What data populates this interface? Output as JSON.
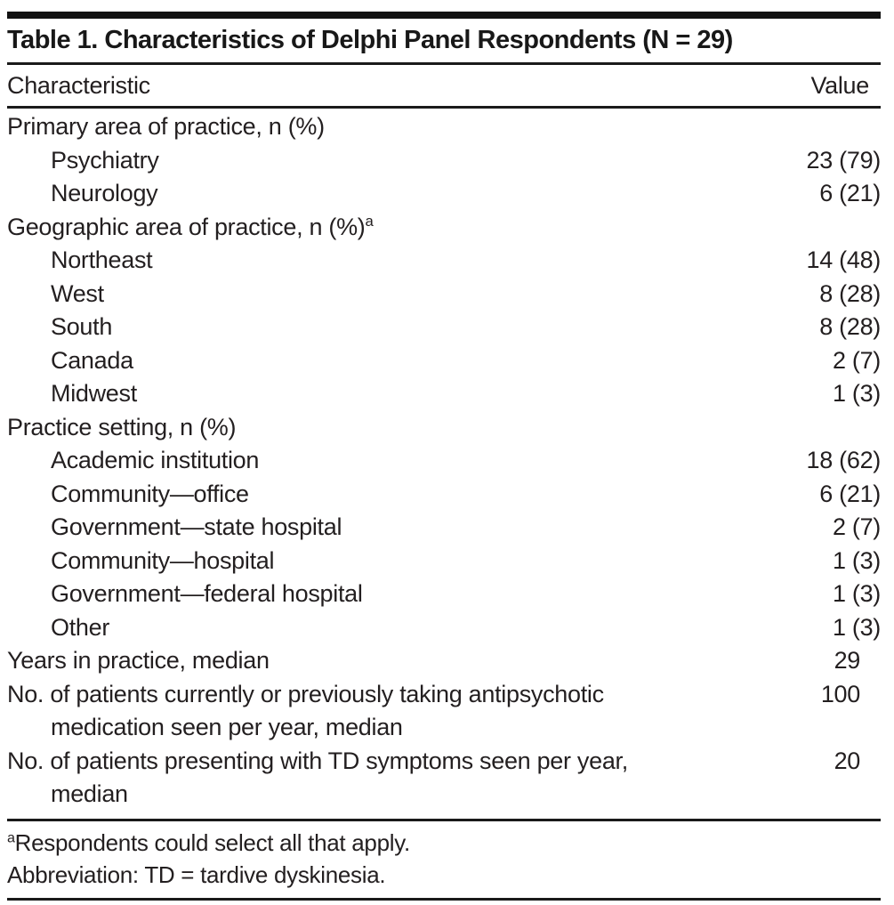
{
  "table": {
    "title": "Table 1. Characteristics of Delphi Panel Respondents (N = 29)",
    "columns": [
      "Characteristic",
      "Value"
    ],
    "rows": [
      {
        "label": "Primary area of practice, n (%)",
        "value": "",
        "indent": 0
      },
      {
        "label": "Psychiatry",
        "value": "23 (79)",
        "indent": 1
      },
      {
        "label": "Neurology",
        "value": "6 (21)",
        "indent": 1
      },
      {
        "label": "Geographic area of practice, n (%)",
        "sup": "a",
        "value": "",
        "indent": 0
      },
      {
        "label": "Northeast",
        "value": "14 (48)",
        "indent": 1
      },
      {
        "label": "West",
        "value": "8 (28)",
        "indent": 1
      },
      {
        "label": "South",
        "value": "8 (28)",
        "indent": 1
      },
      {
        "label": "Canada",
        "value": "2 (7)",
        "indent": 1
      },
      {
        "label": "Midwest",
        "value": "1 (3)",
        "indent": 1
      },
      {
        "label": "Practice setting, n (%)",
        "value": "",
        "indent": 0
      },
      {
        "label": "Academic institution",
        "value": "18 (62)",
        "indent": 1
      },
      {
        "label": "Community—office",
        "value": "6 (21)",
        "indent": 1
      },
      {
        "label": "Government—state hospital",
        "value": "2 (7)",
        "indent": 1
      },
      {
        "label": "Community—hospital",
        "value": "1 (3)",
        "indent": 1
      },
      {
        "label": "Government—federal hospital",
        "value": "1 (3)",
        "indent": 1
      },
      {
        "label": "Other",
        "value": "1 (3)",
        "indent": 1
      },
      {
        "label": "Years in practice, median",
        "value": "29",
        "indent": 0,
        "value_inset": true
      },
      {
        "label": "No. of patients currently or previously taking antipsychotic medication seen per year, median",
        "lines": [
          "No. of patients currently or previously taking antipsychotic",
          "medication seen per year, median"
        ],
        "value": "100",
        "indent": 0,
        "value_inset": true
      },
      {
        "label": "No. of patients presenting with TD symptoms seen per year, median",
        "lines": [
          "No. of patients presenting with TD symptoms seen per year,",
          "median"
        ],
        "value": "20",
        "indent": 0,
        "value_inset": true
      }
    ],
    "footnotes": [
      {
        "sup": "a",
        "text": "Respondents could select all that apply."
      },
      {
        "sup": "",
        "text": "Abbreviation: TD = tardive dyskinesia."
      }
    ],
    "colors": {
      "text": "#231f20",
      "rule": "#1a1a1a",
      "background": "#ffffff"
    }
  }
}
